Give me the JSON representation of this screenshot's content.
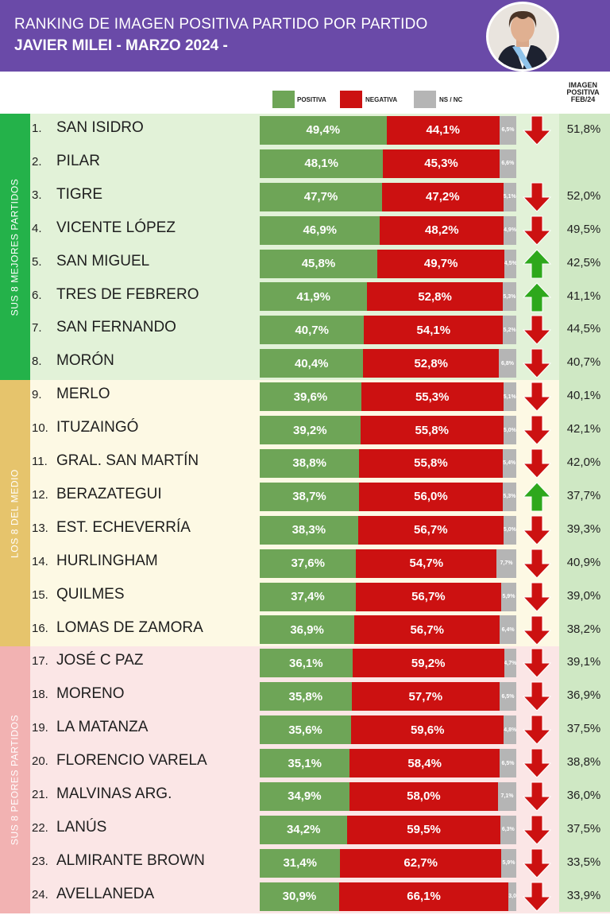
{
  "header": {
    "title_line1": "RANKING DE IMAGEN POSITIVA PARTIDO POR PARTIDO",
    "title_line2": "JAVIER MILEI - MARZO 2024 -"
  },
  "legend": {
    "positiva": "POSITIVA",
    "negativa": "NEGATIVA",
    "nsnc": "NS / NC"
  },
  "feb_header": [
    "IMAGEN",
    "POSITIVA",
    "FEB/24"
  ],
  "groups": [
    {
      "label": "SUS 8 MEJORES PARTIDOS",
      "color": "#24b24a",
      "bg": "#e2f2d8"
    },
    {
      "label": "LOS 8 DEL MEDIO",
      "color": "#e6c46c",
      "bg": "#fdf9e4"
    },
    {
      "label": "SUS 8 PEORES PARTIDOS",
      "color": "#f2b2b2",
      "bg": "#fbe6e6"
    }
  ],
  "colors": {
    "positiva": "#6ea557",
    "negativa": "#cc1111",
    "nsnc": "#b5b5b5",
    "arrow_down": "#cc1111",
    "arrow_up": "#2ea81c",
    "header_bg": "#6a4aa8"
  },
  "chart_data": {
    "type": "bar",
    "stacked": true,
    "orientation": "horizontal",
    "title": "RANKING DE IMAGEN POSITIVA PARTIDO POR PARTIDO",
    "subtitle": "JAVIER MILEI - MARZO 2024 -",
    "legend": [
      "POSITIVA",
      "NEGATIVA",
      "NS / NC"
    ],
    "rows": [
      {
        "rank": "1.",
        "name": "SAN ISIDRO",
        "pos": 49.4,
        "pos_label": "49,4%",
        "neg": 44.1,
        "neg_label": "44,1%",
        "ns": 6.5,
        "ns_label": "6,5%",
        "trend": "down",
        "feb": "51,8%"
      },
      {
        "rank": "2.",
        "name": "PILAR",
        "pos": 48.1,
        "pos_label": "48,1%",
        "neg": 45.3,
        "neg_label": "45,3%",
        "ns": 6.6,
        "ns_label": "6,6%",
        "trend": "",
        "feb": ""
      },
      {
        "rank": "3.",
        "name": "TIGRE",
        "pos": 47.7,
        "pos_label": "47,7%",
        "neg": 47.2,
        "neg_label": "47,2%",
        "ns": 5.1,
        "ns_label": "5,1%",
        "trend": "down",
        "feb": "52,0%"
      },
      {
        "rank": "4.",
        "name": "VICENTE LÓPEZ",
        "pos": 46.9,
        "pos_label": "46,9%",
        "neg": 48.2,
        "neg_label": "48,2%",
        "ns": 4.9,
        "ns_label": "4,9%",
        "trend": "down",
        "feb": "49,5%"
      },
      {
        "rank": "5.",
        "name": "SAN MIGUEL",
        "pos": 45.8,
        "pos_label": "45,8%",
        "neg": 49.7,
        "neg_label": "49,7%",
        "ns": 4.5,
        "ns_label": "4,5%",
        "trend": "up",
        "feb": "42,5%"
      },
      {
        "rank": "6.",
        "name": "TRES DE FEBRERO",
        "pos": 41.9,
        "pos_label": "41,9%",
        "neg": 52.8,
        "neg_label": "52,8%",
        "ns": 5.3,
        "ns_label": "5,3%",
        "trend": "up",
        "feb": "41,1%"
      },
      {
        "rank": "7.",
        "name": "SAN FERNANDO",
        "pos": 40.7,
        "pos_label": "40,7%",
        "neg": 54.1,
        "neg_label": "54,1%",
        "ns": 5.2,
        "ns_label": "5,2%",
        "trend": "down",
        "feb": "44,5%"
      },
      {
        "rank": "8.",
        "name": "MORÓN",
        "pos": 40.4,
        "pos_label": "40,4%",
        "neg": 52.8,
        "neg_label": "52,8%",
        "ns": 6.8,
        "ns_label": "6,8%",
        "trend": "down",
        "feb": "40,7%"
      },
      {
        "rank": "9.",
        "name": "MERLO",
        "pos": 39.6,
        "pos_label": "39,6%",
        "neg": 55.3,
        "neg_label": "55,3%",
        "ns": 5.1,
        "ns_label": "5,1%",
        "trend": "down",
        "feb": "40,1%"
      },
      {
        "rank": "10.",
        "name": "ITUZAINGÓ",
        "pos": 39.2,
        "pos_label": "39,2%",
        "neg": 55.8,
        "neg_label": "55,8%",
        "ns": 5.0,
        "ns_label": "5,0%",
        "trend": "down",
        "feb": "42,1%"
      },
      {
        "rank": "11.",
        "name": "GRAL. SAN MARTÍN",
        "pos": 38.8,
        "pos_label": "38,8%",
        "neg": 55.8,
        "neg_label": "55,8%",
        "ns": 5.4,
        "ns_label": "5,4%",
        "trend": "down",
        "feb": "42,0%"
      },
      {
        "rank": "12.",
        "name": "BERAZATEGUI",
        "pos": 38.7,
        "pos_label": "38,7%",
        "neg": 56.0,
        "neg_label": "56,0%",
        "ns": 5.3,
        "ns_label": "5,3%",
        "trend": "up",
        "feb": "37,7%"
      },
      {
        "rank": "13.",
        "name": "EST. ECHEVERRÍA",
        "pos": 38.3,
        "pos_label": "38,3%",
        "neg": 56.7,
        "neg_label": "56,7%",
        "ns": 5.0,
        "ns_label": "5,0%",
        "trend": "down",
        "feb": "39,3%"
      },
      {
        "rank": "14.",
        "name": "HURLINGHAM",
        "pos": 37.6,
        "pos_label": "37,6%",
        "neg": 54.7,
        "neg_label": "54,7%",
        "ns": 7.7,
        "ns_label": "7,7%",
        "trend": "down",
        "feb": "40,9%"
      },
      {
        "rank": "15.",
        "name": "QUILMES",
        "pos": 37.4,
        "pos_label": "37,4%",
        "neg": 56.7,
        "neg_label": "56,7%",
        "ns": 5.9,
        "ns_label": "5,9%",
        "trend": "down",
        "feb": "39,0%"
      },
      {
        "rank": "16.",
        "name": "LOMAS DE ZAMORA",
        "pos": 36.9,
        "pos_label": "36,9%",
        "neg": 56.7,
        "neg_label": "56,7%",
        "ns": 6.4,
        "ns_label": "6,4%",
        "trend": "down",
        "feb": "38,2%"
      },
      {
        "rank": "17.",
        "name": "JOSÉ C PAZ",
        "pos": 36.1,
        "pos_label": "36,1%",
        "neg": 59.2,
        "neg_label": "59,2%",
        "ns": 4.7,
        "ns_label": "4,7%",
        "trend": "down",
        "feb": "39,1%"
      },
      {
        "rank": "18.",
        "name": "MORENO",
        "pos": 35.8,
        "pos_label": "35,8%",
        "neg": 57.7,
        "neg_label": "57,7%",
        "ns": 6.5,
        "ns_label": "6,5%",
        "trend": "down",
        "feb": "36,9%"
      },
      {
        "rank": "19.",
        "name": "LA MATANZA",
        "pos": 35.6,
        "pos_label": "35,6%",
        "neg": 59.6,
        "neg_label": "59,6%",
        "ns": 4.8,
        "ns_label": "4,8%",
        "trend": "down",
        "feb": "37,5%"
      },
      {
        "rank": "20.",
        "name": "FLORENCIO VARELA",
        "pos": 35.1,
        "pos_label": "35,1%",
        "neg": 58.4,
        "neg_label": "58,4%",
        "ns": 6.5,
        "ns_label": "6,5%",
        "trend": "down",
        "feb": "38,8%"
      },
      {
        "rank": "21.",
        "name": "MALVINAS ARG.",
        "pos": 34.9,
        "pos_label": "34,9%",
        "neg": 58.0,
        "neg_label": "58,0%",
        "ns": 7.1,
        "ns_label": "7,1%",
        "trend": "down",
        "feb": "36,0%"
      },
      {
        "rank": "22.",
        "name": "LANÚS",
        "pos": 34.2,
        "pos_label": "34,2%",
        "neg": 59.5,
        "neg_label": "59,5%",
        "ns": 6.3,
        "ns_label": "6,3%",
        "trend": "down",
        "feb": "37,5%"
      },
      {
        "rank": "23.",
        "name": "ALMIRANTE BROWN",
        "pos": 31.4,
        "pos_label": "31,4%",
        "neg": 62.7,
        "neg_label": "62,7%",
        "ns": 5.9,
        "ns_label": "5,9%",
        "trend": "down",
        "feb": "33,5%"
      },
      {
        "rank": "24.",
        "name": "AVELLANEDA",
        "pos": 30.9,
        "pos_label": "30,9%",
        "neg": 66.1,
        "neg_label": "66,1%",
        "ns": 3.0,
        "ns_label": "3,0",
        "trend": "down",
        "feb": "33,9%"
      }
    ]
  }
}
